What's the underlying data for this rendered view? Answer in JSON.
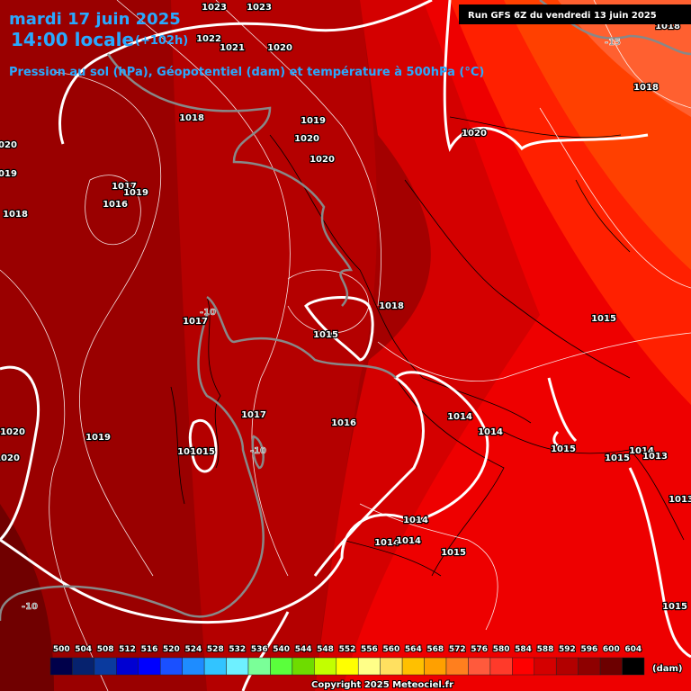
{
  "header": {
    "date": "mardi 17 juin 2025",
    "time": "14:00 locale",
    "lead": "(+102h)",
    "subtitle": "Pression au sol (hPa), Géopotentiel (dam) et température à 500hPa (°C)",
    "run": "Run GFS 6Z du vendredi 13 juin 2025"
  },
  "isobar_labels": [
    "1023",
    "1023",
    "1022",
    "1021",
    "1020",
    "1018",
    "1019",
    "1020",
    "1020",
    "1020",
    "1020",
    "1019",
    "1017",
    "1019",
    "1016",
    "1018",
    "1017",
    "1015",
    "1018",
    "1015",
    "1017",
    "1016",
    "1014",
    "1014",
    "1015",
    "1019",
    "1020",
    "1020",
    "1016",
    "1015",
    "1018",
    "1018",
    "1015",
    "1014",
    "1013",
    "1013",
    "1014",
    "1014",
    "1014",
    "1015",
    "1015"
  ],
  "temperature_labels": [
    "-10",
    "-10",
    "-10",
    "-15"
  ],
  "legend": {
    "labels": [
      500,
      504,
      508,
      512,
      516,
      520,
      524,
      528,
      532,
      536,
      540,
      544,
      548,
      552,
      556,
      560,
      564,
      568,
      572,
      576,
      580,
      584,
      588,
      592,
      596,
      600,
      604
    ],
    "colors": [
      "#00004a",
      "#06226e",
      "#0a3a9e",
      "#0000d2",
      "#0000ff",
      "#1a50ff",
      "#1e8cff",
      "#32c4ff",
      "#6ef0ff",
      "#7aff98",
      "#5aff3c",
      "#6edc00",
      "#c2ff00",
      "#ffff00",
      "#ffff88",
      "#ffe060",
      "#ffc000",
      "#ffa000",
      "#ff7f1e",
      "#ff5a3c",
      "#ff3a2a",
      "#ff0000",
      "#d40000",
      "#b20000",
      "#8e0000",
      "#6c0000",
      "#000000"
    ],
    "unit": "(dam)"
  },
  "footer": "Copyright 2025 Meteociel.fr"
}
